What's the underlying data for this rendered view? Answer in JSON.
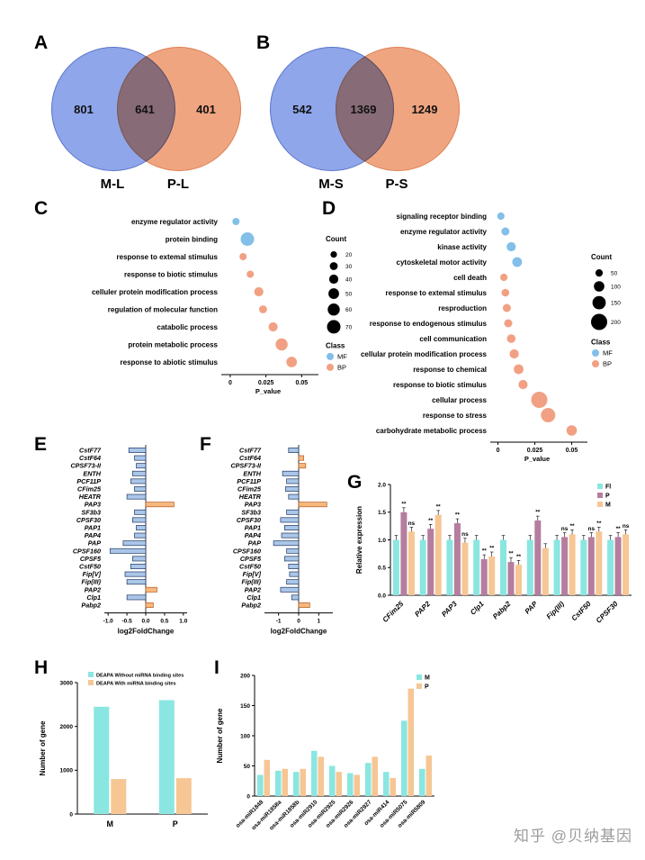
{
  "watermark": "知乎 @贝纳基因",
  "colors": {
    "venn_blue": "#8fa6ea",
    "venn_orange": "#f0a581",
    "mf": "#82bfe9",
    "bp": "#f2a083",
    "bar_neg": "#aac6e8",
    "bar_neg_border": "#1f3864",
    "bar_pos": "#f5b87e",
    "bar_pos_border": "#b55a1f",
    "teal": "#8ae6e0",
    "mauve": "#b57d9e",
    "tan": "#f6c694"
  },
  "venns": [
    {
      "label": "A",
      "left_value": "801",
      "overlap_value": "641",
      "right_value": "401",
      "left_label": "M-L",
      "right_label": "P-L"
    },
    {
      "label": "B",
      "left_value": "542",
      "overlap_value": "1369",
      "right_value": "1249",
      "left_label": "M-S",
      "right_label": "P-S"
    }
  ],
  "chart_data": [
    {
      "id": "C",
      "panel_label": "C",
      "type": "scatter",
      "xlabel": "P_value",
      "xticks": [
        0,
        0.025,
        0.05
      ],
      "xtick_labels": [
        "0",
        "0.025",
        "0.05"
      ],
      "xlim": [
        -0.005,
        0.058
      ],
      "points": [
        {
          "label": "enzyme regulator activity",
          "x": 0.004,
          "count": 25,
          "class": "MF"
        },
        {
          "label": "protein binding",
          "x": 0.012,
          "count": 70,
          "class": "MF"
        },
        {
          "label": "response to extemal stimulus",
          "x": 0.009,
          "count": 25,
          "class": "BP"
        },
        {
          "label": "response to biotic stimulus",
          "x": 0.014,
          "count": 25,
          "class": "BP"
        },
        {
          "label": "celluler protein modification process",
          "x": 0.02,
          "count": 40,
          "class": "BP"
        },
        {
          "label": "regulation of molecular function",
          "x": 0.023,
          "count": 30,
          "class": "BP"
        },
        {
          "label": "catabolic process",
          "x": 0.03,
          "count": 40,
          "class": "BP"
        },
        {
          "label": "protein metabolic process",
          "x": 0.036,
          "count": 60,
          "class": "BP"
        },
        {
          "label": "response to abiotic stimulus",
          "x": 0.043,
          "count": 50,
          "class": "BP"
        }
      ],
      "legend": {
        "count_title": "Count",
        "count_values": [
          20,
          30,
          40,
          50,
          60,
          70
        ],
        "class_title": "Class",
        "classes": [
          "MF",
          "BP"
        ]
      }
    },
    {
      "id": "D",
      "panel_label": "D",
      "type": "scatter",
      "xlabel": "P_value",
      "xticks": [
        0,
        0.025,
        0.05
      ],
      "xtick_labels": [
        "0",
        "0.025",
        "0.05"
      ],
      "xlim": [
        -0.004,
        0.057
      ],
      "points": [
        {
          "label": "signaling receptor binding",
          "x": 0.002,
          "count": 50,
          "class": "MF"
        },
        {
          "label": "enzyme regulator activity",
          "x": 0.005,
          "count": 60,
          "class": "MF"
        },
        {
          "label": "kinase activity",
          "x": 0.009,
          "count": 80,
          "class": "MF"
        },
        {
          "label": "cytoskeletal motor activity",
          "x": 0.013,
          "count": 90,
          "class": "MF"
        },
        {
          "label": "cell death",
          "x": 0.004,
          "count": 50,
          "class": "BP"
        },
        {
          "label": "response to extemal stimulus",
          "x": 0.005,
          "count": 55,
          "class": "BP"
        },
        {
          "label": "resproduction",
          "x": 0.006,
          "count": 60,
          "class": "BP"
        },
        {
          "label": "response to endogenous stimulus",
          "x": 0.007,
          "count": 60,
          "class": "BP"
        },
        {
          "label": "cell communication",
          "x": 0.009,
          "count": 70,
          "class": "BP"
        },
        {
          "label": "cellular protein modification process",
          "x": 0.011,
          "count": 80,
          "class": "BP"
        },
        {
          "label": "response to chemical",
          "x": 0.014,
          "count": 90,
          "class": "BP"
        },
        {
          "label": "response to biotic stimulus",
          "x": 0.017,
          "count": 80,
          "class": "BP"
        },
        {
          "label": "cellular process",
          "x": 0.028,
          "count": 200,
          "class": "BP"
        },
        {
          "label": "response to stress",
          "x": 0.034,
          "count": 170,
          "class": "BP"
        },
        {
          "label": "carbohydrate metabolic process",
          "x": 0.05,
          "count": 100,
          "class": "BP"
        }
      ],
      "legend": {
        "count_title": "Count",
        "count_values": [
          50,
          100,
          150,
          200
        ],
        "class_title": "Class",
        "classes": [
          "MF",
          "BP"
        ]
      }
    },
    {
      "id": "E",
      "panel_label": "E",
      "type": "hbar",
      "xlabel": "log2FoldChange",
      "xticks": [
        -1,
        -0.5,
        0,
        0.5,
        1
      ],
      "xtick_labels": [
        "-1.0",
        "-0.5",
        "0.0",
        "0.5",
        "1.0"
      ],
      "xlim": [
        -1.1,
        1.1
      ],
      "bars": [
        {
          "gene": "CstF77",
          "value": -0.45
        },
        {
          "gene": "CstF64",
          "value": -0.3
        },
        {
          "gene": "CPSF73-II",
          "value": -0.25
        },
        {
          "gene": "ENTH",
          "value": -0.35
        },
        {
          "gene": "PCF11P",
          "value": -0.4
        },
        {
          "gene": "CFim25",
          "value": -0.3
        },
        {
          "gene": "HEATR",
          "value": -0.5
        },
        {
          "gene": "PAP3",
          "value": 0.75
        },
        {
          "gene": "SF3b3",
          "value": -0.3
        },
        {
          "gene": "CPSF30",
          "value": -0.35
        },
        {
          "gene": "PAP1",
          "value": -0.25
        },
        {
          "gene": "PAP4",
          "value": -0.3
        },
        {
          "gene": "PAP",
          "value": -0.6
        },
        {
          "gene": "CPSF160",
          "value": -0.95
        },
        {
          "gene": "CPSF5",
          "value": -0.35
        },
        {
          "gene": "CstF50",
          "value": -0.4
        },
        {
          "gene": "Fip[V]",
          "value": -0.55
        },
        {
          "gene": "Fip(III)",
          "value": -0.5
        },
        {
          "gene": "PAP2",
          "value": 0.3
        },
        {
          "gene": "Clp1",
          "value": -0.5
        },
        {
          "gene": "Pabp2",
          "value": 0.2
        }
      ]
    },
    {
      "id": "F",
      "panel_label": "F",
      "type": "hbar",
      "xlabel": "log2FoldChange",
      "xticks": [
        -1,
        0,
        1
      ],
      "xtick_labels": [
        "-1",
        "0",
        "1"
      ],
      "xlim": [
        -1.7,
        1.7
      ],
      "bars": [
        {
          "gene": "CstF77",
          "value": -0.5
        },
        {
          "gene": "CstF64",
          "value": 0.25
        },
        {
          "gene": "CPSF73-II",
          "value": 0.35
        },
        {
          "gene": "ENTH",
          "value": -0.8
        },
        {
          "gene": "PCF11P",
          "value": -0.6
        },
        {
          "gene": "CFim25",
          "value": -0.65
        },
        {
          "gene": "HEATR",
          "value": -0.5
        },
        {
          "gene": "PAP3",
          "value": 1.4
        },
        {
          "gene": "SF3b3",
          "value": -0.6
        },
        {
          "gene": "CPSF30",
          "value": -0.9
        },
        {
          "gene": "PAP1",
          "value": -0.7
        },
        {
          "gene": "PAP4",
          "value": -0.85
        },
        {
          "gene": "PAP",
          "value": -1.25
        },
        {
          "gene": "CPSF160",
          "value": -0.6
        },
        {
          "gene": "CPSF5",
          "value": -0.7
        },
        {
          "gene": "CstF50",
          "value": -0.5
        },
        {
          "gene": "Fip[V]",
          "value": -0.45
        },
        {
          "gene": "Fip(III)",
          "value": -0.6
        },
        {
          "gene": "PAP2",
          "value": -0.9
        },
        {
          "gene": "Clp1",
          "value": -0.35
        },
        {
          "gene": "Pabp2",
          "value": 0.55
        }
      ]
    },
    {
      "id": "G",
      "panel_label": "G",
      "type": "groupbar",
      "ylabel": "Relative expression",
      "yticks": [
        0,
        0.5,
        1,
        1.5,
        2
      ],
      "ytick_labels": [
        "0.0",
        "0.5",
        "1.0",
        "1.5",
        "2.0"
      ],
      "ylim": [
        0,
        2
      ],
      "err": 0.08,
      "categories": [
        "CFim25",
        "PAP2",
        "PAP3",
        "Clp1",
        "Pabp2",
        "PAP",
        "Fip(III)",
        "CstF50",
        "CPSF30"
      ],
      "series": [
        {
          "name": "Fl",
          "color": "teal",
          "values": [
            1.0,
            1.0,
            1.0,
            1.0,
            1.0,
            1.0,
            1.0,
            1.0,
            1.0
          ],
          "sig": [
            "",
            "",
            "",
            "",
            "",
            "",
            "",
            "",
            ""
          ]
        },
        {
          "name": "P",
          "color": "mauve",
          "values": [
            1.5,
            1.2,
            1.3,
            0.65,
            0.6,
            1.35,
            1.05,
            1.05,
            1.05
          ],
          "sig": [
            "**",
            "**",
            "**",
            "**",
            "**",
            "**",
            "ns",
            "ns",
            "**"
          ]
        },
        {
          "name": "M",
          "color": "tan",
          "values": [
            1.15,
            1.45,
            0.95,
            0.7,
            0.55,
            0.85,
            1.1,
            1.15,
            1.1
          ],
          "sig": [
            "ns",
            "**",
            "ns",
            "**",
            "**",
            "",
            "**",
            "**",
            "ns"
          ]
        }
      ]
    },
    {
      "id": "H",
      "panel_label": "H",
      "type": "groupbar",
      "ylabel": "Number of gene",
      "yticks": [
        0,
        1000,
        2000,
        3000
      ],
      "ytick_labels": [
        "0",
        "1000",
        "2000",
        "3000"
      ],
      "ylim": [
        0,
        3000
      ],
      "err": 0,
      "categories": [
        "M",
        "P"
      ],
      "series": [
        {
          "name": "DEAPA Without miRNA binding sites",
          "color": "teal",
          "values": [
            2450,
            2600
          ]
        },
        {
          "name": "DEAPA With miRNA binding sites",
          "color": "tan",
          "values": [
            800,
            820
          ]
        }
      ]
    },
    {
      "id": "I",
      "panel_label": "I",
      "type": "groupbar",
      "ylabel": "Number of gene",
      "yticks": [
        0,
        50,
        100,
        150,
        200
      ],
      "ytick_labels": [
        "0",
        "50",
        "100",
        "150",
        "200"
      ],
      "ylim": [
        0,
        200
      ],
      "err": 0,
      "categories": [
        "osa-miR1848",
        "osa-miR1858a",
        "osa-miR1858b",
        "osa-miR2910",
        "osa-miR2925",
        "osa-miR2926",
        "osa-miR2927",
        "osa-miR414",
        "osa-miR5075",
        "osa-miR5809"
      ],
      "series": [
        {
          "name": "M",
          "color": "teal",
          "values": [
            35,
            42,
            40,
            75,
            50,
            38,
            55,
            40,
            125,
            45
          ]
        },
        {
          "name": "P",
          "color": "tan",
          "values": [
            60,
            45,
            45,
            65,
            40,
            35,
            65,
            30,
            178,
            67
          ]
        }
      ]
    }
  ]
}
